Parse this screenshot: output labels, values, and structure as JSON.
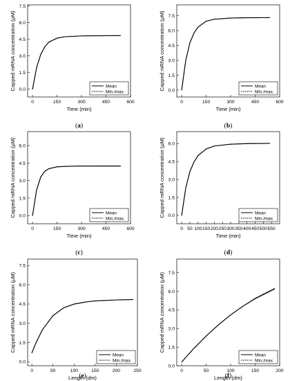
{
  "chart_data": [
    {
      "panel": "a",
      "type": "line",
      "xlabel": "Time (min)",
      "ylabel": "Capped mRNA concentration (μM)",
      "xlim": [
        -30,
        600
      ],
      "ylim": [
        -0.7,
        7.6
      ],
      "xticks": [
        "0",
        "150",
        "300",
        "450",
        "600"
      ],
      "yticks": [
        "0.0",
        "1.5",
        "3.0",
        "4.5",
        "6.0",
        "7.5"
      ],
      "legend": [
        "Mean",
        "Min./max."
      ],
      "legend_position": "bottom-right",
      "series": [
        {
          "name": "Mean",
          "style": "solid",
          "x": [
            0,
            25,
            50,
            75,
            100,
            150,
            200,
            300,
            400,
            540
          ],
          "y": [
            0.0,
            1.95,
            3.12,
            3.82,
            4.24,
            4.6,
            4.73,
            4.8,
            4.82,
            4.83
          ]
        },
        {
          "name": "Min./max.",
          "style": "dotted",
          "x": [
            0,
            25,
            50,
            75,
            100,
            150,
            200,
            300,
            400,
            540
          ],
          "y": [
            0.0,
            1.95,
            3.12,
            3.82,
            4.24,
            4.6,
            4.73,
            4.8,
            4.82,
            4.83
          ]
        }
      ],
      "caption": "(a)"
    },
    {
      "panel": "b",
      "type": "line",
      "xlabel": "Time (min)",
      "ylabel": "Capped mRNA concentration (μM)",
      "xlim": [
        -30,
        600
      ],
      "ylim": [
        -0.7,
        8.6
      ],
      "xticks": [
        "0",
        "150",
        "300",
        "450",
        "600"
      ],
      "yticks": [
        "0.0",
        "1.5",
        "3.0",
        "4.5",
        "6.0",
        "7.5"
      ],
      "legend": [
        "Mean",
        "Min./max."
      ],
      "legend_position": "bottom-right",
      "series": [
        {
          "name": "Mean",
          "style": "solid",
          "x": [
            0,
            25,
            50,
            75,
            100,
            150,
            200,
            300,
            400,
            540
          ],
          "y": [
            0.0,
            3.0,
            4.75,
            5.75,
            6.35,
            6.95,
            7.15,
            7.27,
            7.3,
            7.31
          ]
        },
        {
          "name": "Min./max.",
          "style": "dotted",
          "x": [
            0,
            25,
            50,
            75,
            100,
            150,
            200,
            300,
            400,
            540
          ],
          "y": [
            0.0,
            3.0,
            4.75,
            5.75,
            6.35,
            6.95,
            7.15,
            7.27,
            7.3,
            7.31
          ]
        }
      ],
      "caption": "(b)"
    },
    {
      "panel": "c",
      "type": "line",
      "xlabel": "Time (min)",
      "ylabel": "Capped mRNA concentration (μM)",
      "xlim": [
        -30,
        600
      ],
      "ylim": [
        -0.7,
        7.2
      ],
      "xticks": [
        "0",
        "150",
        "300",
        "450",
        "600"
      ],
      "yticks": [
        "0.0",
        "1.5",
        "3.0",
        "4.5",
        "6.0"
      ],
      "legend": [
        "Mean",
        "Min./max."
      ],
      "legend_position": "bottom-right",
      "series": [
        {
          "name": "Mean",
          "style": "solid",
          "x": [
            0,
            25,
            50,
            75,
            100,
            150,
            200,
            300,
            400,
            540
          ],
          "y": [
            0.0,
            2.2,
            3.3,
            3.8,
            4.02,
            4.18,
            4.22,
            4.25,
            4.25,
            4.25
          ]
        },
        {
          "name": "Min./max.",
          "style": "dotted",
          "x": [
            0,
            25,
            50,
            75,
            100,
            150,
            200,
            300,
            400,
            540
          ],
          "y": [
            0.0,
            2.2,
            3.3,
            3.8,
            4.02,
            4.18,
            4.22,
            4.25,
            4.25,
            4.25
          ]
        }
      ],
      "caption": "(c)"
    },
    {
      "panel": "d",
      "type": "line",
      "xlabel": "Time (min)",
      "ylabel": "Capped mRNA concentration (μM)",
      "xlim": [
        -30,
        600
      ],
      "ylim": [
        -0.7,
        7.0
      ],
      "xticks": [
        "0",
        "50",
        "100",
        "150",
        "200",
        "250",
        "300",
        "350",
        "400",
        "450",
        "500",
        "550"
      ],
      "yticks": [
        "0.0",
        "1.5",
        "3.0",
        "4.5",
        "6.0"
      ],
      "legend": [
        "Mean",
        "Min./max."
      ],
      "legend_position": "bottom-right",
      "series": [
        {
          "name": "Mean",
          "style": "solid",
          "x": [
            0,
            25,
            50,
            75,
            100,
            150,
            200,
            300,
            400,
            540
          ],
          "y": [
            0.0,
            2.3,
            3.65,
            4.45,
            5.0,
            5.55,
            5.8,
            5.95,
            6.0,
            6.02
          ]
        },
        {
          "name": "Min./max.",
          "style": "dotted",
          "x": [
            0,
            25,
            50,
            75,
            100,
            150,
            200,
            300,
            400,
            540
          ],
          "y": [
            0.0,
            2.3,
            3.65,
            4.45,
            5.0,
            5.55,
            5.8,
            5.95,
            6.0,
            6.02
          ]
        }
      ],
      "caption": "(d)"
    },
    {
      "panel": "e",
      "type": "line",
      "xlabel": "Length (dm)",
      "ylabel": "Capped mRNA concentration (μM)",
      "xlim": [
        -10,
        250
      ],
      "ylim": [
        -0.3,
        8.0
      ],
      "xticks": [
        "0",
        "50",
        "100",
        "150",
        "200",
        "250"
      ],
      "yticks": [
        "0.0",
        "1.5",
        "3.0",
        "4.5",
        "6.0",
        "7.5"
      ],
      "legend": [
        "Mean",
        "Min./max."
      ],
      "legend_position": "bottom-right",
      "series": [
        {
          "name": "Mean",
          "style": "solid",
          "x": [
            0,
            10,
            25,
            50,
            75,
            100,
            125,
            150,
            200,
            240
          ],
          "y": [
            0.7,
            1.5,
            2.5,
            3.6,
            4.2,
            4.5,
            4.65,
            4.75,
            4.82,
            4.85
          ]
        },
        {
          "name": "Min./max.",
          "style": "dotted",
          "x": [
            0,
            10,
            25,
            50,
            75,
            100,
            125,
            150,
            200,
            240
          ],
          "y": [
            0.7,
            1.5,
            2.5,
            3.6,
            4.2,
            4.5,
            4.65,
            4.75,
            4.82,
            4.85
          ]
        }
      ],
      "caption": "(e)"
    },
    {
      "panel": "f",
      "type": "line",
      "xlabel": "Length (dm)",
      "ylabel": "Capped mRNA concentration (μM)",
      "xlim": [
        -10,
        200
      ],
      "ylim": [
        0.0,
        8.6
      ],
      "xticks": [
        "0",
        "50",
        "100",
        "150",
        "200"
      ],
      "yticks": [
        "0.0",
        "1.5",
        "3.0",
        "4.5",
        "6.0",
        "7.5"
      ],
      "legend": [
        "Mean",
        "Min./max."
      ],
      "legend_position": "bottom-right",
      "series": [
        {
          "name": "Mean",
          "style": "solid",
          "x": [
            0,
            10,
            25,
            50,
            75,
            100,
            125,
            150,
            175,
            190
          ],
          "y": [
            0.3,
            0.75,
            1.4,
            2.4,
            3.3,
            4.1,
            4.8,
            5.4,
            5.9,
            6.2
          ]
        },
        {
          "name": "Min./max.",
          "style": "dotted",
          "x": [
            0,
            10,
            25,
            50,
            75,
            100,
            125,
            150,
            175,
            190
          ],
          "y": [
            0.3,
            0.75,
            1.4,
            2.4,
            3.3,
            4.1,
            4.8,
            5.45,
            5.95,
            6.25
          ]
        }
      ],
      "caption": "(f)"
    }
  ]
}
